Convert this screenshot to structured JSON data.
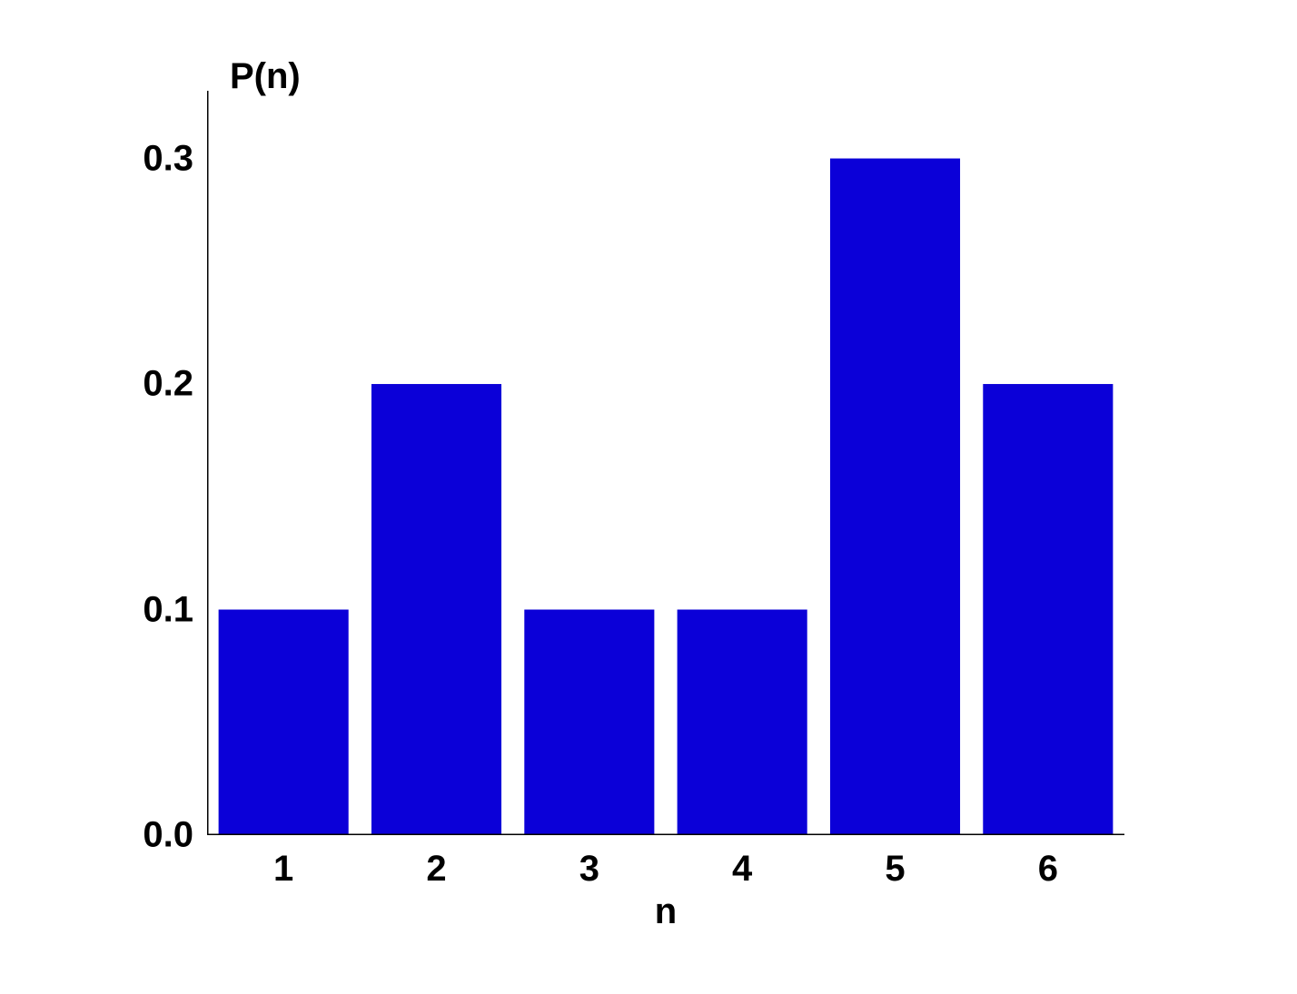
{
  "chart": {
    "type": "bar",
    "y_axis_title": "P(n)",
    "x_axis_title": "n",
    "categories": [
      "1",
      "2",
      "3",
      "4",
      "5",
      "6"
    ],
    "values": [
      0.1,
      0.2,
      0.1,
      0.1,
      0.3,
      0.2
    ],
    "bar_color": "#0b00d8",
    "y_ticks": [
      0.0,
      0.1,
      0.2,
      0.3
    ],
    "y_tick_labels": [
      "0.0",
      "0.1",
      "0.2",
      "0.3"
    ],
    "ylim": [
      0.0,
      0.33
    ],
    "xlim": [
      0.5,
      6.5
    ],
    "bar_width": 0.85,
    "background_color": "#ffffff",
    "axis_color": "#000000",
    "axis_width": 3,
    "major_tick_length": 14,
    "minor_tick_length": 9,
    "title_fontsize": 40,
    "label_fontsize": 40,
    "font_weight": "bold"
  }
}
